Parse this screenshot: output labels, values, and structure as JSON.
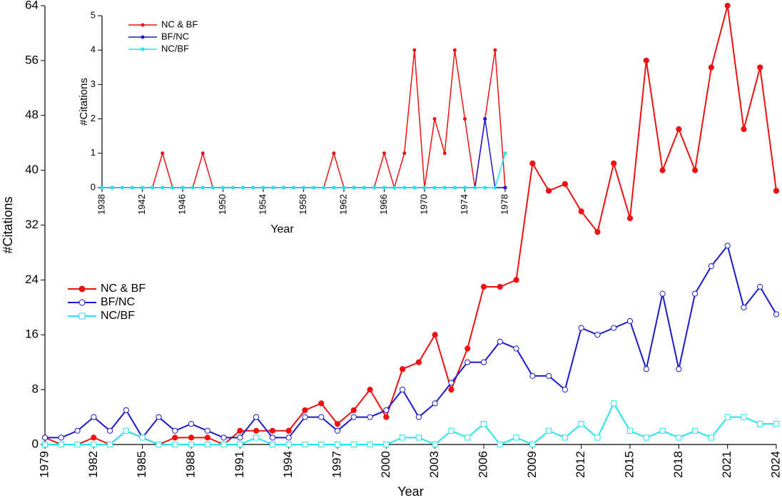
{
  "chart_data": [
    {
      "type": "line",
      "x_label": "Year",
      "y_label": "#Citations",
      "x": [
        1979,
        1980,
        1981,
        1982,
        1983,
        1984,
        1985,
        1986,
        1987,
        1988,
        1989,
        1990,
        1991,
        1992,
        1993,
        1994,
        1995,
        1996,
        1997,
        1998,
        1999,
        2000,
        2001,
        2002,
        2003,
        2004,
        2005,
        2006,
        2007,
        2008,
        2009,
        2010,
        2011,
        2012,
        2013,
        2014,
        2015,
        2016,
        2017,
        2018,
        2019,
        2020,
        2021,
        2022,
        2023,
        2024
      ],
      "series": [
        {
          "name": "NC & BF",
          "color": "#ee1111",
          "marker": "circle-filled",
          "values": [
            1,
            0,
            0,
            1,
            0,
            2,
            1,
            0,
            1,
            1,
            1,
            0,
            2,
            2,
            2,
            2,
            5,
            6,
            3,
            5,
            8,
            4,
            11,
            12,
            16,
            8,
            14,
            23,
            23,
            24,
            41,
            37,
            38,
            34,
            31,
            41,
            33,
            56,
            40,
            46,
            40,
            55,
            64,
            46,
            55,
            37
          ]
        },
        {
          "name": "BF/NC",
          "color": "#1a1acc",
          "marker": "circle-open",
          "values": [
            1,
            1,
            2,
            4,
            2,
            5,
            1,
            4,
            2,
            3,
            2,
            1,
            1,
            4,
            1,
            1,
            4,
            4,
            2,
            4,
            4,
            5,
            8,
            4,
            6,
            9,
            12,
            12,
            15,
            14,
            10,
            10,
            8,
            17,
            16,
            17,
            18,
            11,
            22,
            11,
            22,
            26,
            29,
            20,
            23,
            19
          ]
        },
        {
          "name": "NC/BF",
          "color": "#22e5ee",
          "marker": "square-open",
          "values": [
            0,
            0,
            0,
            0,
            0,
            2,
            1,
            0,
            0,
            0,
            0,
            0,
            0,
            1,
            0,
            0,
            0,
            0,
            0,
            0,
            0,
            0,
            1,
            1,
            0,
            2,
            1,
            3,
            0,
            1,
            0,
            2,
            1,
            3,
            1,
            6,
            2,
            1,
            2,
            1,
            2,
            1,
            4,
            4,
            3,
            3
          ]
        }
      ],
      "xlim": [
        1979,
        2024
      ],
      "ylim": [
        0,
        64
      ],
      "xticks": [
        1979,
        1982,
        1985,
        1988,
        1991,
        1994,
        1997,
        2000,
        2003,
        2006,
        2009,
        2012,
        2015,
        2018,
        2021,
        2024
      ],
      "yticks": [
        0,
        8,
        16,
        24,
        32,
        40,
        48,
        56,
        64
      ]
    },
    {
      "type": "line",
      "x_label": "Year",
      "y_label": "#Citations",
      "x": [
        1938,
        1939,
        1940,
        1941,
        1942,
        1943,
        1944,
        1945,
        1946,
        1947,
        1948,
        1949,
        1950,
        1951,
        1952,
        1953,
        1954,
        1955,
        1956,
        1957,
        1958,
        1959,
        1960,
        1961,
        1962,
        1963,
        1964,
        1965,
        1966,
        1967,
        1968,
        1969,
        1970,
        1971,
        1972,
        1973,
        1974,
        1975,
        1976,
        1977,
        1978
      ],
      "series": [
        {
          "name": "NC & BF",
          "color": "#ee1111",
          "marker": "dot",
          "values": [
            0,
            0,
            0,
            0,
            0,
            0,
            1,
            0,
            0,
            0,
            1,
            0,
            0,
            0,
            0,
            0,
            0,
            0,
            0,
            0,
            0,
            0,
            0,
            1,
            0,
            0,
            0,
            0,
            1,
            0,
            1,
            4,
            0,
            2,
            1,
            4,
            2,
            0,
            2,
            4,
            0
          ]
        },
        {
          "name": "BF/NC",
          "color": "#1a1acc",
          "marker": "dot",
          "values": [
            0,
            0,
            0,
            0,
            0,
            0,
            0,
            0,
            0,
            0,
            0,
            0,
            0,
            0,
            0,
            0,
            0,
            0,
            0,
            0,
            0,
            0,
            0,
            0,
            0,
            0,
            0,
            0,
            0,
            0,
            0,
            0,
            0,
            0,
            0,
            0,
            0,
            0,
            2,
            0,
            0
          ]
        },
        {
          "name": "NC/BF",
          "color": "#22e5ee",
          "marker": "dot",
          "values": [
            0,
            0,
            0,
            0,
            0,
            0,
            0,
            0,
            0,
            0,
            0,
            0,
            0,
            0,
            0,
            0,
            0,
            0,
            0,
            0,
            0,
            0,
            0,
            0,
            0,
            0,
            0,
            0,
            0,
            0,
            0,
            0,
            0,
            0,
            0,
            0,
            0,
            0,
            0,
            0,
            1
          ]
        }
      ],
      "xlim": [
        1938,
        1978
      ],
      "ylim": [
        0,
        5
      ],
      "xticks": [
        1938,
        1942,
        1946,
        1950,
        1954,
        1958,
        1962,
        1966,
        1970,
        1974,
        1978
      ],
      "yticks": [
        0,
        1,
        2,
        3,
        4,
        5
      ]
    }
  ]
}
